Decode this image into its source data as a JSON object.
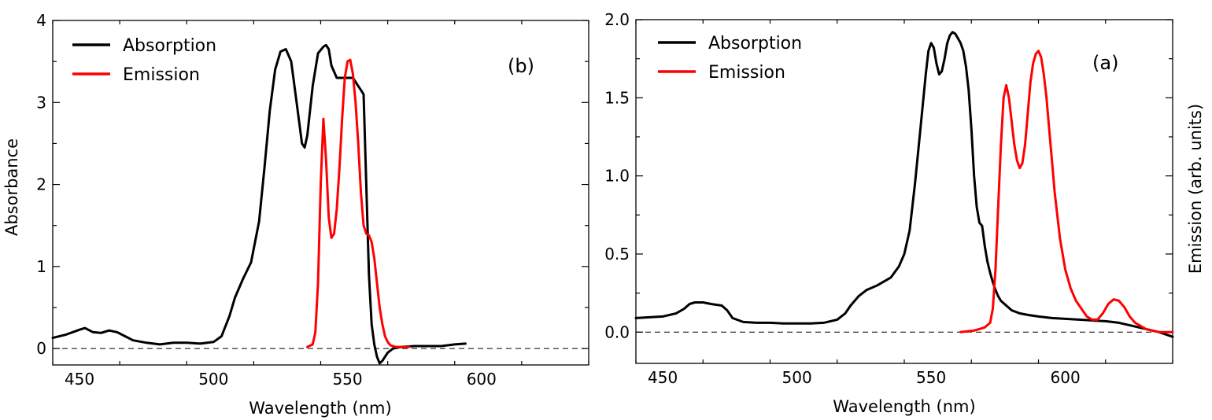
{
  "colors": {
    "absorption": "#000000",
    "emission": "#ff0000",
    "ylabel_right": "#ff0000"
  },
  "chart_data": [
    {
      "type": "line",
      "panel_label": "(b)",
      "xlabel": "Wavelength (nm)",
      "ylabel": "Absorbance",
      "xlim": [
        440,
        640
      ],
      "ylim": [
        -0.2,
        4
      ],
      "xticks": [
        450,
        500,
        550,
        600
      ],
      "yticks": [
        0,
        1,
        2,
        3,
        4
      ],
      "xtick_labels": [
        "450",
        "500",
        "550",
        "600"
      ],
      "ytick_labels": [
        "0",
        "1",
        "2",
        "3",
        "4"
      ],
      "reference_line_y": 0,
      "legend": {
        "placement": "top-left",
        "entries": [
          "Absorption",
          "Emission"
        ]
      },
      "series": [
        {
          "name": "Absorption",
          "color": "#000000",
          "x": [
            440,
            445,
            450,
            452,
            455,
            458,
            461,
            464,
            467,
            470,
            475,
            480,
            485,
            490,
            495,
            500,
            503,
            506,
            508,
            511,
            514,
            517,
            519,
            521,
            523,
            525,
            527,
            529,
            531,
            533,
            534,
            535,
            537,
            539,
            541,
            542,
            543,
            544,
            546,
            548,
            550,
            552,
            554,
            555,
            556,
            557,
            558,
            559,
            560,
            561,
            562,
            563,
            565,
            567,
            570,
            575,
            580,
            585,
            590,
            594
          ],
          "y": [
            0.13,
            0.17,
            0.23,
            0.25,
            0.2,
            0.19,
            0.22,
            0.2,
            0.15,
            0.1,
            0.07,
            0.05,
            0.07,
            0.07,
            0.06,
            0.08,
            0.15,
            0.4,
            0.62,
            0.85,
            1.05,
            1.55,
            2.2,
            2.9,
            3.4,
            3.62,
            3.65,
            3.5,
            3.0,
            2.5,
            2.45,
            2.6,
            3.2,
            3.6,
            3.68,
            3.7,
            3.65,
            3.45,
            3.3,
            3.3,
            3.3,
            3.3,
            3.2,
            3.15,
            3.1,
            2.0,
            0.9,
            0.3,
            0.05,
            -0.1,
            -0.18,
            -0.15,
            -0.05,
            0.0,
            0.02,
            0.03,
            0.03,
            0.03,
            0.05,
            0.06
          ]
        },
        {
          "name": "Emission",
          "color": "#ff0000",
          "x": [
            535,
            537,
            538,
            539,
            540,
            541,
            542,
            543,
            544,
            545,
            546,
            547,
            548,
            549,
            550,
            551,
            552,
            553,
            554,
            555,
            556,
            557,
            558,
            559,
            560,
            561,
            562,
            563,
            564,
            565,
            566,
            568,
            570,
            573
          ],
          "y": [
            0.02,
            0.05,
            0.2,
            0.8,
            2.0,
            2.8,
            2.3,
            1.6,
            1.35,
            1.4,
            1.7,
            2.2,
            2.8,
            3.3,
            3.5,
            3.52,
            3.35,
            3.0,
            2.5,
            1.9,
            1.5,
            1.4,
            1.38,
            1.3,
            1.1,
            0.8,
            0.5,
            0.3,
            0.15,
            0.08,
            0.04,
            0.02,
            0.02,
            0.02
          ]
        }
      ]
    },
    {
      "type": "line",
      "panel_label": "(a)",
      "xlabel": "Wavelength (nm)",
      "ylabel": "Emission (arb. units)",
      "ylabel_side": "right",
      "xlim": [
        440,
        640
      ],
      "ylim": [
        -0.2,
        2.0
      ],
      "xticks": [
        450,
        500,
        550,
        600
      ],
      "yticks": [
        0.0,
        0.5,
        1.0,
        1.5,
        2.0
      ],
      "xtick_labels": [
        "450",
        "500",
        "550",
        "600"
      ],
      "ytick_labels": [
        "0.0",
        "0.5",
        "1.0",
        "1.5",
        "2.0"
      ],
      "reference_line_y": 0,
      "legend": {
        "placement": "top-left",
        "entries": [
          "Absorption",
          "Emission"
        ]
      },
      "series": [
        {
          "name": "Absorption",
          "color": "#000000",
          "x": [
            440,
            445,
            450,
            455,
            458,
            460,
            462,
            465,
            468,
            472,
            474,
            476,
            480,
            485,
            490,
            495,
            500,
            505,
            510,
            515,
            518,
            520,
            523,
            526,
            530,
            535,
            538,
            540,
            542,
            544,
            546,
            548,
            549,
            550,
            551,
            552,
            553,
            554,
            555,
            556,
            557,
            558,
            559,
            560,
            561,
            562,
            563,
            564,
            565,
            566,
            567,
            568,
            569,
            570,
            571,
            572,
            573,
            574,
            575,
            576,
            578,
            580,
            583,
            586,
            590,
            595,
            600,
            605,
            610,
            615,
            620,
            625,
            630,
            635,
            640
          ],
          "y": [
            0.09,
            0.095,
            0.1,
            0.12,
            0.15,
            0.18,
            0.19,
            0.19,
            0.18,
            0.17,
            0.14,
            0.09,
            0.065,
            0.06,
            0.06,
            0.055,
            0.055,
            0.055,
            0.06,
            0.08,
            0.12,
            0.17,
            0.23,
            0.27,
            0.3,
            0.35,
            0.42,
            0.5,
            0.65,
            0.95,
            1.3,
            1.65,
            1.8,
            1.85,
            1.82,
            1.72,
            1.65,
            1.67,
            1.75,
            1.85,
            1.9,
            1.92,
            1.91,
            1.88,
            1.85,
            1.8,
            1.7,
            1.55,
            1.3,
            1.0,
            0.8,
            0.7,
            0.68,
            0.55,
            0.45,
            0.38,
            0.32,
            0.27,
            0.23,
            0.2,
            0.17,
            0.14,
            0.12,
            0.11,
            0.1,
            0.09,
            0.085,
            0.08,
            0.075,
            0.07,
            0.06,
            0.04,
            0.02,
            0.0,
            -0.03
          ]
        },
        {
          "name": "Emission",
          "color": "#ff0000",
          "x": [
            561,
            566,
            570,
            572,
            573,
            574,
            575,
            576,
            577,
            578,
            579,
            580,
            581,
            582,
            583,
            584,
            585,
            586,
            587,
            588,
            589,
            590,
            591,
            592,
            593,
            594,
            595,
            596,
            597,
            598,
            600,
            602,
            604,
            606,
            608,
            610,
            612,
            614,
            616,
            618,
            620,
            622,
            624,
            626,
            628,
            630,
            635,
            640
          ],
          "y": [
            0.0,
            0.01,
            0.03,
            0.06,
            0.15,
            0.4,
            0.8,
            1.2,
            1.5,
            1.58,
            1.5,
            1.35,
            1.2,
            1.1,
            1.05,
            1.08,
            1.2,
            1.4,
            1.6,
            1.72,
            1.78,
            1.8,
            1.76,
            1.65,
            1.5,
            1.3,
            1.1,
            0.9,
            0.75,
            0.6,
            0.4,
            0.28,
            0.2,
            0.15,
            0.1,
            0.08,
            0.08,
            0.12,
            0.18,
            0.21,
            0.2,
            0.16,
            0.1,
            0.06,
            0.04,
            0.02,
            0.0,
            0.0
          ]
        }
      ]
    }
  ]
}
